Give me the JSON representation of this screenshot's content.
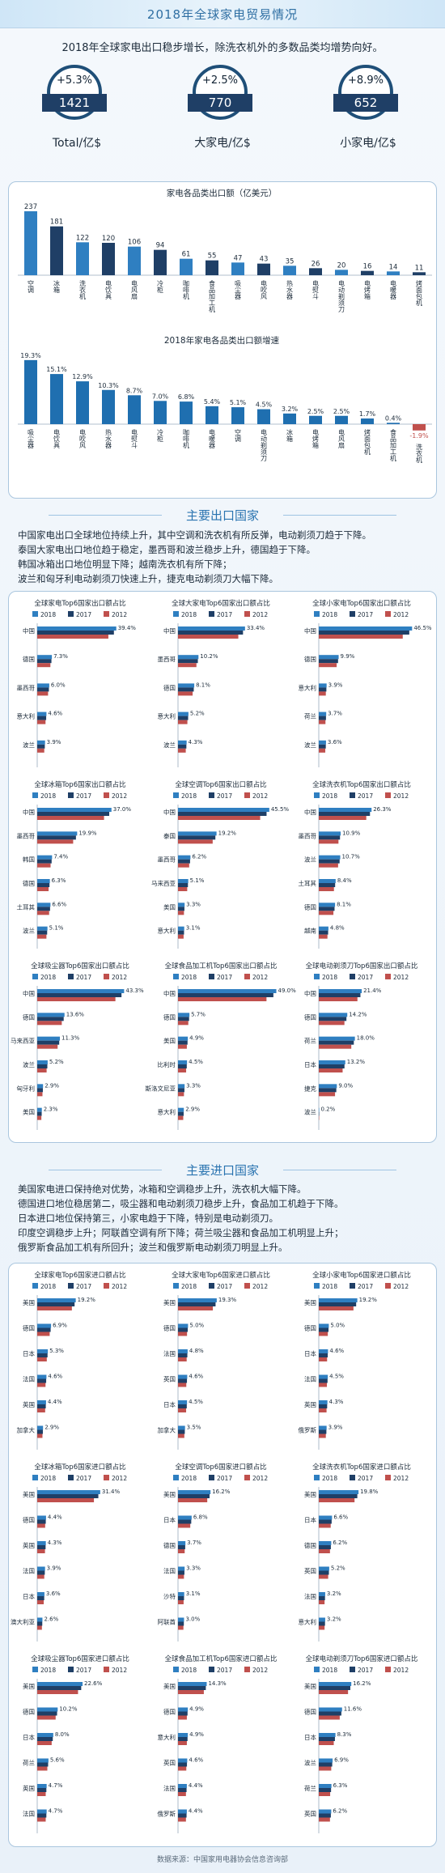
{
  "header": {
    "title": "2018年全球家电贸易情况"
  },
  "subtitle": "2018年全球家电出口稳步增长，除洗衣机外的多数品类均增势向好。",
  "kpis": [
    {
      "change": "+5.3%",
      "value": "1421",
      "label": "Total/亿$"
    },
    {
      "change": "+2.5%",
      "value": "770",
      "label": "大家电/亿$"
    },
    {
      "change": "+8.9%",
      "value": "652",
      "label": "小家电/亿$"
    }
  ],
  "chart_data": [
    {
      "type": "bar",
      "title": "家电各品类出口额（亿美元）",
      "categories": [
        "空调",
        "冰箱",
        "洗衣机",
        "电饮具",
        "电风扇",
        "冷柜",
        "咖啡机",
        "食品加工机",
        "吸尘器",
        "电吹风",
        "热水器",
        "电熨斗",
        "电动剃须刀",
        "电烤箱",
        "电暖器",
        "烤面包机"
      ],
      "values": [
        237,
        181,
        122,
        120,
        106,
        94,
        61,
        55,
        47,
        43,
        35,
        26,
        20,
        16,
        14,
        11
      ]
    },
    {
      "type": "bar",
      "title": "2018年家电各品类出口额增速",
      "categories": [
        "吸尘器",
        "电饮具",
        "电吹风",
        "热水器",
        "电熨斗",
        "冷柜",
        "咖啡机",
        "电暖器",
        "空调",
        "电动剃须刀",
        "冰箱",
        "电烤箱",
        "电风扇",
        "烤面包机",
        "食品加工机",
        "洗衣机"
      ],
      "labels": [
        "19.3%",
        "15.1%",
        "12.9%",
        "10.3%",
        "8.7%",
        "7.0%",
        "6.8%",
        "5.4%",
        "5.1%",
        "4.5%",
        "3.2%",
        "2.5%",
        "2.5%",
        "1.7%",
        "0.4%",
        "-1.9%"
      ],
      "values": [
        19.3,
        15.1,
        12.9,
        10.3,
        8.7,
        7.0,
        6.8,
        5.4,
        5.1,
        4.5,
        3.2,
        2.5,
        2.5,
        1.7,
        0.4,
        -1.9
      ]
    },
    {
      "type": "bar",
      "title": "全球家电Top6国家出口额占比",
      "legend": [
        "2018",
        "2017",
        "2012"
      ],
      "categories": [
        "中国",
        "德国",
        "墨西哥",
        "意大利",
        "波兰"
      ],
      "labels": [
        "39.4%",
        "7.3%",
        "6.0%",
        "4.6%",
        "3.9%"
      ],
      "values": [
        39.4,
        7.3,
        6.0,
        4.6,
        3.9
      ]
    },
    {
      "type": "bar",
      "title": "全球大家电Top6国家出口额占比",
      "legend": [
        "2018",
        "2017",
        "2012"
      ],
      "categories": [
        "中国",
        "墨西哥",
        "德国",
        "意大利",
        "波兰"
      ],
      "labels": [
        "33.4%",
        "10.2%",
        "8.1%",
        "5.2%",
        "4.3%"
      ],
      "values": [
        33.4,
        10.2,
        8.1,
        5.2,
        4.3
      ]
    },
    {
      "type": "bar",
      "title": "全球小家电Top6国家出口额占比",
      "legend": [
        "2018",
        "2017",
        "2012"
      ],
      "categories": [
        "中国",
        "德国",
        "意大利",
        "荷兰",
        "波兰"
      ],
      "labels": [
        "46.5%",
        "9.9%",
        "3.9%",
        "3.7%",
        "3.6%"
      ],
      "values": [
        46.5,
        9.9,
        3.9,
        3.7,
        3.6
      ]
    },
    {
      "type": "bar",
      "title": "全球冰箱Top6国家出口额占比",
      "legend": [
        "2018",
        "2017",
        "2012"
      ],
      "categories": [
        "中国",
        "墨西哥",
        "韩国",
        "德国",
        "土耳其",
        "波兰"
      ],
      "labels": [
        "37.0%",
        "19.9%",
        "7.4%",
        "6.3%",
        "6.6%",
        "5.1%"
      ],
      "values": [
        37.0,
        19.9,
        7.4,
        6.3,
        6.6,
        5.1
      ]
    },
    {
      "type": "bar",
      "title": "全球空调Top6国家出口额占比",
      "legend": [
        "2018",
        "2017",
        "2012"
      ],
      "categories": [
        "中国",
        "泰国",
        "墨西哥",
        "马来西亚",
        "美国",
        "意大利"
      ],
      "labels": [
        "45.5%",
        "19.2%",
        "6.2%",
        "5.1%",
        "3.3%",
        "3.1%"
      ],
      "values": [
        45.5,
        19.2,
        6.2,
        5.1,
        3.3,
        3.1
      ]
    },
    {
      "type": "bar",
      "title": "全球洗衣机Top6国家出口额占比",
      "legend": [
        "2018",
        "2017",
        "2012"
      ],
      "categories": [
        "中国",
        "墨西哥",
        "波兰",
        "土耳其",
        "德国",
        "越南"
      ],
      "labels": [
        "26.3%",
        "10.9%",
        "10.7%",
        "8.4%",
        "8.1%",
        "4.8%"
      ],
      "values": [
        26.3,
        10.9,
        10.7,
        8.4,
        8.1,
        4.8
      ]
    },
    {
      "type": "bar",
      "title": "全球吸尘器Top6国家出口额占比",
      "legend": [
        "2018",
        "2017",
        "2012"
      ],
      "categories": [
        "中国",
        "德国",
        "马来西亚",
        "波兰",
        "匈牙利",
        "美国"
      ],
      "labels": [
        "43.3%",
        "13.6%",
        "11.3%",
        "5.2%",
        "2.9%",
        "2.3%"
      ],
      "values": [
        43.3,
        13.6,
        11.3,
        5.2,
        2.9,
        2.3
      ]
    },
    {
      "type": "bar",
      "title": "全球食品加工机Top6国家出口额占比",
      "legend": [
        "2018",
        "2017",
        "2012"
      ],
      "categories": [
        "中国",
        "德国",
        "美国",
        "比利时",
        "斯洛文尼亚",
        "意大利"
      ],
      "labels": [
        "49.0%",
        "5.7%",
        "4.9%",
        "4.5%",
        "3.3%",
        "2.9%"
      ],
      "values": [
        49.0,
        5.7,
        4.9,
        4.5,
        3.3,
        2.9
      ]
    },
    {
      "type": "bar",
      "title": "全球电动剃须刀Top6国家出口额占比",
      "legend": [
        "2018",
        "2017",
        "2012"
      ],
      "categories": [
        "中国",
        "德国",
        "荷兰",
        "日本",
        "捷克",
        "波兰"
      ],
      "labels": [
        "21.4%",
        "14.2%",
        "18.0%",
        "13.2%",
        "9.0%",
        "0.2%"
      ],
      "values": [
        21.4,
        14.2,
        18.0,
        13.2,
        9.0,
        0.2
      ]
    },
    {
      "type": "bar",
      "title": "全球家电Top6国家进口额占比",
      "legend": [
        "2018",
        "2017",
        "2012"
      ],
      "categories": [
        "美国",
        "德国",
        "日本",
        "法国",
        "英国",
        "加拿大"
      ],
      "labels": [
        "19.2%",
        "6.9%",
        "5.3%",
        "4.6%",
        "4.4%",
        "2.9%"
      ],
      "values": [
        19.2,
        6.9,
        5.3,
        4.6,
        4.4,
        2.9
      ]
    },
    {
      "type": "bar",
      "title": "全球大家电Top6国家进口额占比",
      "legend": [
        "2018",
        "2017",
        "2012"
      ],
      "categories": [
        "美国",
        "德国",
        "法国",
        "英国",
        "日本",
        "加拿大"
      ],
      "labels": [
        "19.3%",
        "5.0%",
        "4.8%",
        "4.6%",
        "4.5%",
        "3.5%"
      ],
      "values": [
        19.3,
        5.0,
        4.8,
        4.6,
        4.5,
        3.5
      ]
    },
    {
      "type": "bar",
      "title": "全球小家电Top6国家进口额占比",
      "legend": [
        "2018",
        "2017",
        "2012"
      ],
      "categories": [
        "美国",
        "德国",
        "日本",
        "法国",
        "英国",
        "俄罗斯"
      ],
      "labels": [
        "19.2%",
        "5.0%",
        "4.6%",
        "4.5%",
        "4.3%",
        "3.9%"
      ],
      "values": [
        19.2,
        5.0,
        4.6,
        4.5,
        4.3,
        3.9
      ]
    },
    {
      "type": "bar",
      "title": "全球冰箱Top6国家进口额占比",
      "legend": [
        "2018",
        "2017",
        "2012"
      ],
      "categories": [
        "美国",
        "德国",
        "英国",
        "法国",
        "日本",
        "澳大利亚"
      ],
      "labels": [
        "31.4%",
        "4.4%",
        "4.3%",
        "3.9%",
        "3.6%",
        "2.6%"
      ],
      "values": [
        31.4,
        4.4,
        4.3,
        3.9,
        3.6,
        2.6
      ]
    },
    {
      "type": "bar",
      "title": "全球空调Top6国家进口额占比",
      "legend": [
        "2018",
        "2017",
        "2012"
      ],
      "categories": [
        "美国",
        "日本",
        "德国",
        "法国",
        "沙特",
        "阿联酋"
      ],
      "labels": [
        "16.2%",
        "6.8%",
        "3.7%",
        "3.3%",
        "3.1%",
        "3.0%"
      ],
      "values": [
        16.2,
        6.8,
        3.7,
        3.3,
        3.1,
        3.0
      ]
    },
    {
      "type": "bar",
      "title": "全球洗衣机Top6国家进口额占比",
      "legend": [
        "2018",
        "2017",
        "2012"
      ],
      "categories": [
        "美国",
        "日本",
        "德国",
        "英国",
        "法国",
        "意大利"
      ],
      "labels": [
        "19.8%",
        "6.6%",
        "6.2%",
        "5.2%",
        "3.2%",
        "3.2%"
      ],
      "values": [
        19.8,
        6.6,
        6.2,
        5.2,
        3.2,
        3.2
      ]
    },
    {
      "type": "bar",
      "title": "全球吸尘器Top6国家进口额占比",
      "legend": [
        "2018",
        "2017",
        "2012"
      ],
      "categories": [
        "美国",
        "德国",
        "日本",
        "荷兰",
        "英国",
        "法国"
      ],
      "labels": [
        "22.6%",
        "10.2%",
        "8.0%",
        "5.6%",
        "4.7%",
        "4.7%"
      ],
      "values": [
        22.6,
        10.2,
        8.0,
        5.6,
        4.7,
        4.7
      ]
    },
    {
      "type": "bar",
      "title": "全球食品加工机Top6国家进口额占比",
      "legend": [
        "2018",
        "2017",
        "2012"
      ],
      "categories": [
        "美国",
        "德国",
        "意大利",
        "英国",
        "法国",
        "俄罗斯"
      ],
      "labels": [
        "14.3%",
        "4.9%",
        "4.9%",
        "4.6%",
        "4.4%",
        "4.4%"
      ],
      "values": [
        14.3,
        4.9,
        4.9,
        4.6,
        4.4,
        4.4
      ]
    },
    {
      "type": "bar",
      "title": "全球电动剃须刀Top6国家进口额占比",
      "legend": [
        "2018",
        "2017",
        "2012"
      ],
      "categories": [
        "美国",
        "德国",
        "日本",
        "波兰",
        "荷兰",
        "英国"
      ],
      "labels": [
        "16.2%",
        "11.6%",
        "8.3%",
        "6.9%",
        "6.3%",
        "6.2%"
      ],
      "values": [
        16.2,
        11.6,
        8.3,
        6.9,
        6.3,
        6.2
      ]
    }
  ],
  "export_section": {
    "title": "主要出口国家",
    "lines": [
      "中国家电出口全球地位持续上升，其中空调和洗衣机有所反弹，电动剃须刀趋于下降。",
      "泰国大家电出口地位趋于稳定，墨西哥和波兰稳步上升，德国趋于下降。",
      "韩国冰箱出口地位明显下降；越南洗衣机有所下降；",
      "波兰和匈牙利电动剃须刀快速上升，捷克电动剃须刀大幅下降。"
    ]
  },
  "import_section": {
    "title": "主要进口国家",
    "lines": [
      "美国家电进口保持绝对优势，冰箱和空调稳步上升，洗衣机大幅下降。",
      "德国进口地位稳居第二，吸尘器和电动剃须刀稳步上升，食品加工机趋于下降。",
      "日本进口地位保持第三，小家电趋于下降，特别是电动剃须刀。",
      "印度空调稳步上升；阿联酋空调有所下降；荷兰吸尘器和食品加工机明显上升；",
      "俄罗斯食品加工机有所回升；波兰和俄罗斯电动剃须刀明显上升。"
    ]
  },
  "colors": {
    "y2018": "#2f7fc1",
    "y2017": "#1f3f66",
    "y2012": "#c0504d",
    "bar": "#2f7fc1"
  },
  "footer": "数据来源：中国家用电器协会信息咨询部"
}
